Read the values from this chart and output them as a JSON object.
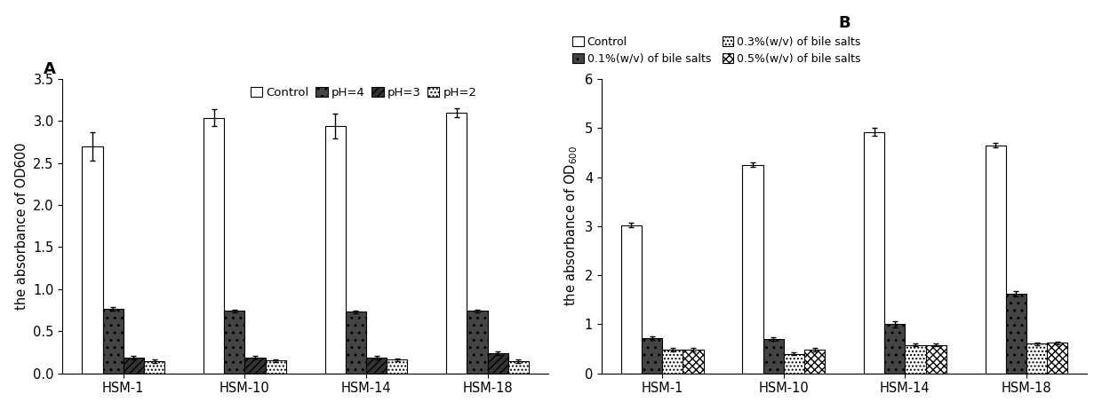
{
  "categories": [
    "HSM-1",
    "HSM-10",
    "HSM-14",
    "HSM-18"
  ],
  "A_title": "A",
  "A_ylabel": "the absorbance of OD600",
  "A_ylim": [
    0,
    3.5
  ],
  "A_yticks": [
    0,
    0.5,
    1.0,
    1.5,
    2.0,
    2.5,
    3.0,
    3.5
  ],
  "A_series": {
    "Control": {
      "values": [
        2.7,
        3.04,
        2.94,
        3.1
      ],
      "errors": [
        0.17,
        0.1,
        0.15,
        0.05
      ]
    },
    "pH=4": {
      "values": [
        0.77,
        0.74,
        0.73,
        0.74
      ],
      "errors": [
        0.02,
        0.02,
        0.02,
        0.02
      ]
    },
    "pH=3": {
      "values": [
        0.19,
        0.19,
        0.19,
        0.24
      ],
      "errors": [
        0.02,
        0.02,
        0.02,
        0.02
      ]
    },
    "pH=2": {
      "values": [
        0.14,
        0.15,
        0.16,
        0.14
      ],
      "errors": [
        0.02,
        0.02,
        0.02,
        0.02
      ]
    }
  },
  "A_legend_labels": [
    "Control",
    "pH=4",
    "pH=3",
    "pH=2"
  ],
  "B_title": "B",
  "B_ylim": [
    0,
    6
  ],
  "B_yticks": [
    0,
    1,
    2,
    3,
    4,
    5,
    6
  ],
  "B_series": {
    "Control": {
      "values": [
        3.02,
        4.25,
        4.92,
        4.65
      ],
      "errors": [
        0.05,
        0.05,
        0.08,
        0.05
      ]
    },
    "0.1%(w/v) of bile salts": {
      "values": [
        0.72,
        0.7,
        1.0,
        1.62
      ],
      "errors": [
        0.04,
        0.03,
        0.06,
        0.05
      ]
    },
    "0.3%(w/v) of bile salts": {
      "values": [
        0.48,
        0.4,
        0.58,
        0.6
      ],
      "errors": [
        0.03,
        0.03,
        0.03,
        0.03
      ]
    },
    "0.5%(w/v) of bile salts": {
      "values": [
        0.48,
        0.48,
        0.58,
        0.62
      ],
      "errors": [
        0.03,
        0.03,
        0.03,
        0.03
      ]
    }
  },
  "B_legend_order": [
    "Control",
    "0.1%(w/v) of bile salts",
    "0.3%(w/v) of bile salts",
    "0.5%(w/v) of bile salts"
  ],
  "bar_width": 0.17,
  "fontsize": 10.5,
  "title_fontsize": 13,
  "tick_fontsize": 10.5
}
